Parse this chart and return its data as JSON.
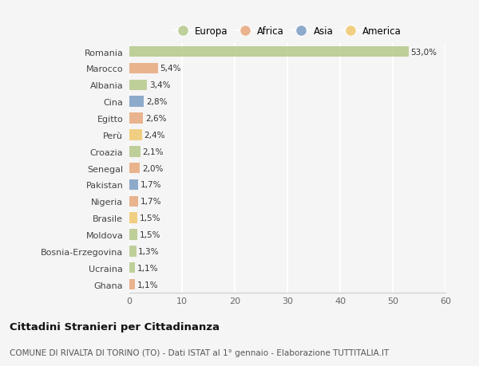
{
  "categories": [
    "Romania",
    "Marocco",
    "Albania",
    "Cina",
    "Egitto",
    "Perù",
    "Croazia",
    "Senegal",
    "Pakistan",
    "Nigeria",
    "Brasile",
    "Moldova",
    "Bosnia-Erzegovina",
    "Ucraina",
    "Ghana"
  ],
  "values": [
    53.0,
    5.4,
    3.4,
    2.8,
    2.6,
    2.4,
    2.1,
    2.0,
    1.7,
    1.7,
    1.5,
    1.5,
    1.3,
    1.1,
    1.1
  ],
  "labels": [
    "53,0%",
    "5,4%",
    "3,4%",
    "2,8%",
    "2,6%",
    "2,4%",
    "2,1%",
    "2,0%",
    "1,7%",
    "1,7%",
    "1,5%",
    "1,5%",
    "1,3%",
    "1,1%",
    "1,1%"
  ],
  "colors": [
    "#b5c98a",
    "#e8a87c",
    "#b5c98a",
    "#7b9dc4",
    "#e8a87c",
    "#f0c96e",
    "#b5c98a",
    "#e8a87c",
    "#7b9dc4",
    "#e8a87c",
    "#f0c96e",
    "#b5c98a",
    "#b5c98a",
    "#b5c98a",
    "#e8a87c"
  ],
  "legend_labels": [
    "Europa",
    "Africa",
    "Asia",
    "America"
  ],
  "legend_colors": [
    "#b5c98a",
    "#e8a87c",
    "#7b9dc4",
    "#f0c96e"
  ],
  "xlim": [
    0,
    60
  ],
  "xticks": [
    0,
    10,
    20,
    30,
    40,
    50,
    60
  ],
  "title": "Cittadini Stranieri per Cittadinanza",
  "subtitle": "COMUNE DI RIVALTA DI TORINO (TO) - Dati ISTAT al 1° gennaio - Elaborazione TUTTITALIA.IT",
  "bg_color": "#f5f5f5",
  "grid_color": "#ffffff",
  "bar_height": 0.65,
  "label_fontsize": 7.5,
  "ytick_fontsize": 8.0,
  "xtick_fontsize": 8.0,
  "legend_fontsize": 8.5,
  "title_fontsize": 9.5,
  "subtitle_fontsize": 7.5
}
